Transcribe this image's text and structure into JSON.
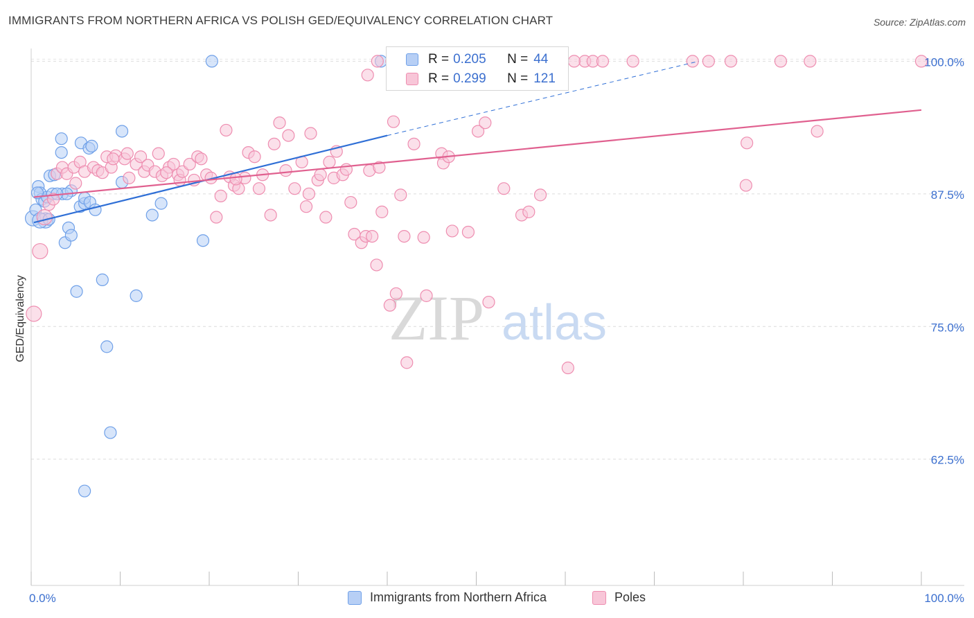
{
  "title": "IMMIGRANTS FROM NORTHERN AFRICA VS POLISH GED/EQUIVALENCY CORRELATION CHART",
  "source": "Source: ZipAtlas.com",
  "watermark": {
    "zip": "ZIP",
    "atlas": "atlas"
  },
  "legend": {
    "r_label": "R =",
    "n_label": "N =",
    "series": [
      {
        "name": "Immigrants from Northern Africa",
        "r": "0.205",
        "n": "44"
      },
      {
        "name": "Poles",
        "r": "0.299",
        "n": "121"
      }
    ]
  },
  "chart_data": {
    "type": "scatter",
    "title": "IMMIGRANTS FROM NORTHERN AFRICA VS POLISH GED/EQUIVALENCY CORRELATION CHART",
    "xlabel": "",
    "ylabel": "GED/Equivalency",
    "xlim": [
      0,
      100
    ],
    "ylim": [
      50.6,
      101.2
    ],
    "x_tick_labels": [
      "0.0%",
      "100.0%"
    ],
    "y_ticks": [
      62.5,
      75.0,
      87.5,
      100.0
    ],
    "y_tick_labels": [
      "62.5%",
      "75.0%",
      "87.5%",
      "100.0%"
    ],
    "grid": "horizontal dashed",
    "legend_position": "top-center",
    "series": [
      {
        "name": "Immigrants from Northern Africa",
        "color": "#6fa0e8",
        "fill": "#b7cff5",
        "trend": {
          "x": [
            0.3,
            40
          ],
          "y": [
            84.8,
            93.0
          ],
          "dashed_to": [
            75,
            100
          ]
        },
        "points": [
          [
            0.2,
            85.2
          ],
          [
            0.5,
            86.0
          ],
          [
            0.8,
            88.2
          ],
          [
            1.0,
            87.6
          ],
          [
            1.2,
            87.0
          ],
          [
            1.5,
            86.8
          ],
          [
            1.6,
            85.0
          ],
          [
            1.8,
            87.2
          ],
          [
            2.1,
            89.2
          ],
          [
            2.4,
            87.5
          ],
          [
            2.6,
            89.3
          ],
          [
            3.5,
            87.5
          ],
          [
            3.4,
            92.7
          ],
          [
            3.4,
            91.4
          ],
          [
            3.8,
            82.9
          ],
          [
            4.2,
            84.3
          ],
          [
            4.5,
            83.6
          ],
          [
            4.5,
            87.8
          ],
          [
            5.1,
            78.3
          ],
          [
            5.5,
            86.3
          ],
          [
            5.6,
            92.3
          ],
          [
            6.0,
            86.6
          ],
          [
            6.0,
            87.1
          ],
          [
            6.5,
            91.8
          ],
          [
            6.6,
            86.7
          ],
          [
            6.8,
            92.0
          ],
          [
            7.2,
            86.0
          ],
          [
            8.0,
            79.4
          ],
          [
            8.5,
            73.1
          ],
          [
            8.9,
            65.0
          ],
          [
            6.0,
            59.5
          ],
          [
            10.2,
            93.4
          ],
          [
            10.2,
            88.6
          ],
          [
            11.8,
            77.9
          ],
          [
            13.6,
            85.5
          ],
          [
            14.6,
            86.6
          ],
          [
            19.3,
            83.1
          ],
          [
            20.3,
            100.0
          ],
          [
            39.3,
            100.0
          ],
          [
            1.0,
            85.0
          ],
          [
            2.0,
            85.1
          ],
          [
            4.0,
            87.5
          ],
          [
            2.9,
            87.5
          ],
          [
            0.7,
            87.6
          ]
        ]
      },
      {
        "name": "Poles",
        "color": "#ee8db0",
        "fill": "#f8c6d8",
        "trend": {
          "x": [
            0.3,
            100
          ],
          "y": [
            87.2,
            95.4
          ]
        },
        "points": [
          [
            0.3,
            76.2
          ],
          [
            1.0,
            82.1
          ],
          [
            1.5,
            85.3
          ],
          [
            2.0,
            86.5
          ],
          [
            2.5,
            87.0
          ],
          [
            2.9,
            89.4
          ],
          [
            3.5,
            90.0
          ],
          [
            4.0,
            89.4
          ],
          [
            4.8,
            90.0
          ],
          [
            5.0,
            88.5
          ],
          [
            5.5,
            90.5
          ],
          [
            6.0,
            89.6
          ],
          [
            7.0,
            90.0
          ],
          [
            7.5,
            89.7
          ],
          [
            8.0,
            89.5
          ],
          [
            8.5,
            91.0
          ],
          [
            9.0,
            90.0
          ],
          [
            9.5,
            91.1
          ],
          [
            10.5,
            90.8
          ],
          [
            10.8,
            91.3
          ],
          [
            11.0,
            89.0
          ],
          [
            11.8,
            90.3
          ],
          [
            12.3,
            91.0
          ],
          [
            12.7,
            89.6
          ],
          [
            13.1,
            90.2
          ],
          [
            13.9,
            89.6
          ],
          [
            14.3,
            91.3
          ],
          [
            14.7,
            89.2
          ],
          [
            15.5,
            90.0
          ],
          [
            16.0,
            90.3
          ],
          [
            16.5,
            89.3
          ],
          [
            16.7,
            88.8
          ],
          [
            17.0,
            89.6
          ],
          [
            17.8,
            90.3
          ],
          [
            18.3,
            88.8
          ],
          [
            18.7,
            91.0
          ],
          [
            19.1,
            90.8
          ],
          [
            19.7,
            89.3
          ],
          [
            20.2,
            89.0
          ],
          [
            20.8,
            85.3
          ],
          [
            21.3,
            87.3
          ],
          [
            21.9,
            93.5
          ],
          [
            22.3,
            89.1
          ],
          [
            22.8,
            88.3
          ],
          [
            23.3,
            88.0
          ],
          [
            24.0,
            89.0
          ],
          [
            24.4,
            91.4
          ],
          [
            25.1,
            91.0
          ],
          [
            25.6,
            88.0
          ],
          [
            26.0,
            89.3
          ],
          [
            26.9,
            85.5
          ],
          [
            27.3,
            92.2
          ],
          [
            27.9,
            94.2
          ],
          [
            28.6,
            89.7
          ],
          [
            28.9,
            93.0
          ],
          [
            29.6,
            88.0
          ],
          [
            30.4,
            90.5
          ],
          [
            30.9,
            86.3
          ],
          [
            31.4,
            93.2
          ],
          [
            32.2,
            88.8
          ],
          [
            32.5,
            89.3
          ],
          [
            33.1,
            85.3
          ],
          [
            33.5,
            90.5
          ],
          [
            34.0,
            89.0
          ],
          [
            34.3,
            91.5
          ],
          [
            35.0,
            89.3
          ],
          [
            35.4,
            89.8
          ],
          [
            35.9,
            86.7
          ],
          [
            36.3,
            83.7
          ],
          [
            37.1,
            82.9
          ],
          [
            37.6,
            83.5
          ],
          [
            38.0,
            89.7
          ],
          [
            38.3,
            83.5
          ],
          [
            38.8,
            80.8
          ],
          [
            39.1,
            90.0
          ],
          [
            39.4,
            85.8
          ],
          [
            40.3,
            77.0
          ],
          [
            40.7,
            94.3
          ],
          [
            41.0,
            78.1
          ],
          [
            41.5,
            87.4
          ],
          [
            41.9,
            83.5
          ],
          [
            42.2,
            71.6
          ],
          [
            43.0,
            92.2
          ],
          [
            44.1,
            83.4
          ],
          [
            44.4,
            77.9
          ],
          [
            46.1,
            91.3
          ],
          [
            46.3,
            90.4
          ],
          [
            46.9,
            91.0
          ],
          [
            47.3,
            84.0
          ],
          [
            49.1,
            83.9
          ],
          [
            50.2,
            93.4
          ],
          [
            51.0,
            94.2
          ],
          [
            51.4,
            77.3
          ],
          [
            53.1,
            88.0
          ],
          [
            55.1,
            85.5
          ],
          [
            55.9,
            85.8
          ],
          [
            57.2,
            87.4
          ],
          [
            60.3,
            71.1
          ],
          [
            62.2,
            100.0
          ],
          [
            63.1,
            100.0
          ],
          [
            67.6,
            100.0
          ],
          [
            74.3,
            100.0
          ],
          [
            76.1,
            100.0
          ],
          [
            78.6,
            100.0
          ],
          [
            80.3,
            88.3
          ],
          [
            84.2,
            100.0
          ],
          [
            80.4,
            92.3
          ],
          [
            87.5,
            100.0
          ],
          [
            88.3,
            93.4
          ],
          [
            100.0,
            100.0
          ],
          [
            37.8,
            98.7
          ],
          [
            38.9,
            100.0
          ],
          [
            40.5,
            100.0
          ],
          [
            53.6,
            100.0
          ],
          [
            54.8,
            100.0
          ],
          [
            61.0,
            100.0
          ],
          [
            64.2,
            100.0
          ],
          [
            31.2,
            87.5
          ],
          [
            23.0,
            88.9
          ],
          [
            15.2,
            89.5
          ],
          [
            9.2,
            90.8
          ]
        ]
      }
    ]
  }
}
